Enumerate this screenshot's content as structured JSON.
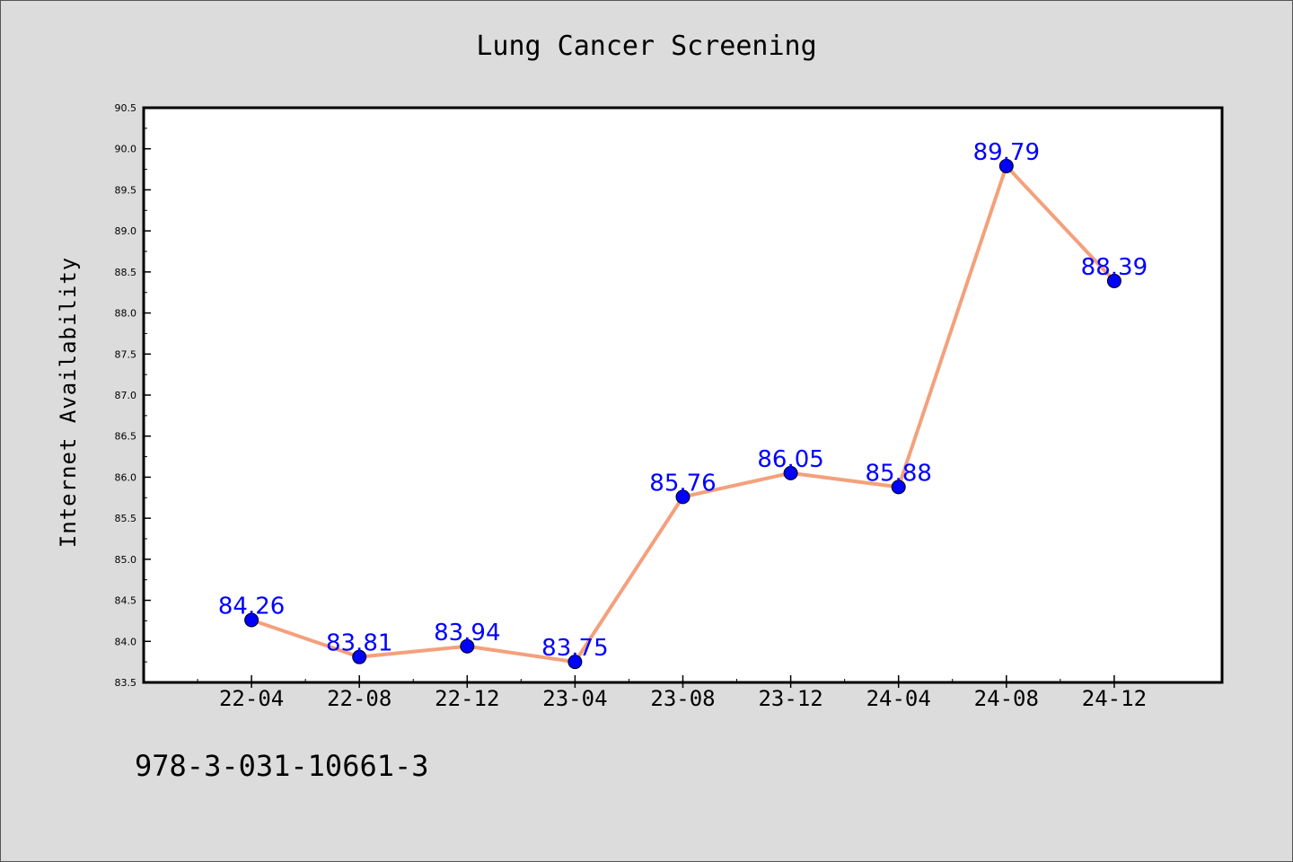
{
  "chart_data": {
    "type": "line",
    "title": "Lung Cancer Screening",
    "xlabel": "",
    "ylabel": "Internet Availability",
    "categories": [
      "22-04",
      "22-08",
      "22-12",
      "23-04",
      "23-08",
      "23-12",
      "24-04",
      "24-08",
      "24-12"
    ],
    "series": [
      {
        "values": [
          84.26,
          83.81,
          83.94,
          83.75,
          85.76,
          86.05,
          85.88,
          89.79,
          88.39
        ],
        "labels": [
          "84.26",
          "83.81",
          "83.94",
          "83.75",
          "85.76",
          "86.05",
          "85.88",
          "89.79",
          "88.39"
        ]
      }
    ],
    "ylim": [
      83.5,
      90.5
    ],
    "yticks": [
      "83.5",
      "84.0",
      "84.5",
      "85.0",
      "85.5",
      "86.0",
      "86.5",
      "87.0",
      "87.5",
      "88.0",
      "88.5",
      "89.0",
      "89.5",
      "90.0",
      "90.5"
    ],
    "grid": false,
    "colors": {
      "line": "#f4a07c",
      "marker": "#0000ff",
      "label": "#0000ff",
      "background": "#dcdcdc",
      "plot_background": "#ffffff"
    }
  },
  "footer": {
    "isbn": "978-3-031-10661-3"
  }
}
